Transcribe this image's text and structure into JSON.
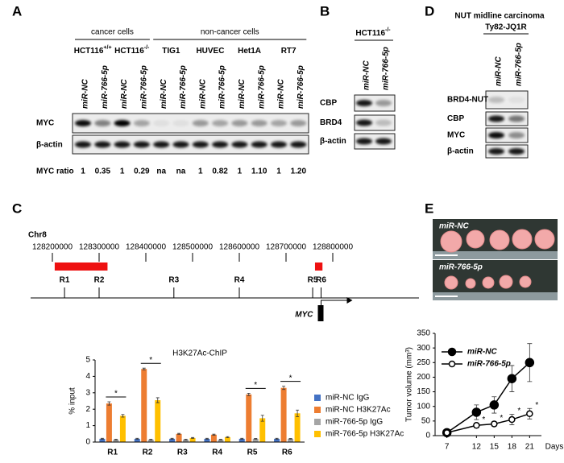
{
  "panels": {
    "A": {
      "letter": "A",
      "groups": [
        "cancer cells",
        "non-cancer cells"
      ],
      "cell_lines": [
        {
          "name": "HCT116",
          "sup": "+/+"
        },
        {
          "name": "HCT116",
          "sup": "-/-"
        },
        {
          "name": "TIG1"
        },
        {
          "name": "HUVEC"
        },
        {
          "name": "Het1A"
        },
        {
          "name": "RT7"
        }
      ],
      "lanes": [
        "miR-NC",
        "miR-766-5p",
        "miR-NC",
        "miR-766-5p",
        "miR-NC",
        "miR-766-5p",
        "miR-NC",
        "miR-766-5p",
        "miR-NC",
        "miR-766-5p",
        "miR-NC",
        "miR-766-5p"
      ],
      "rows": [
        "MYC",
        "β-actin"
      ],
      "ratio_label": "MYC ratio",
      "ratios": [
        "1",
        "0.35",
        "1",
        "0.29",
        "na",
        "na",
        "1",
        "0.82",
        "1",
        "1.10",
        "1",
        "1.20"
      ]
    },
    "B": {
      "letter": "B",
      "cell_line": {
        "name": "HCT116",
        "sup": "-/-"
      },
      "lanes": [
        "miR-NC",
        "miR-766-5p"
      ],
      "rows": [
        "CBP",
        "BRD4",
        "β-actin"
      ]
    },
    "C": {
      "letter": "C",
      "chromosome": "Chr8",
      "track": {
        "ticks": [
          128200000,
          128300000,
          128400000,
          128500000,
          128600000,
          128700000,
          128800000
        ],
        "regions": [
          {
            "label": "R1",
            "position": 128226000
          },
          {
            "label": "R2",
            "position": 128300000
          },
          {
            "label": "R3",
            "position": 128460000
          },
          {
            "label": "R4",
            "position": 128600000
          },
          {
            "label": "R5",
            "position": 128757000
          },
          {
            "label": "R6",
            "position": 128775000
          }
        ],
        "peaks": [
          [
            128205000,
            128318000
          ],
          [
            128762000,
            128778000
          ]
        ],
        "gene": {
          "label": "MYC",
          "position": 128775000
        }
      }
    },
    "D": {
      "letter": "D",
      "title": "NUT midline carcinoma",
      "cell_line": "Ty82-JQ1R",
      "lanes": [
        "miR-NC",
        "miR-766-5p"
      ],
      "rows": [
        "BRD4-NUT",
        "CBP",
        "MYC",
        "β-actin"
      ]
    },
    "E": {
      "letter": "E",
      "photos": [
        "miR-NC",
        "miR-766-5p"
      ]
    }
  },
  "chart_data": [
    {
      "type": "bar",
      "title": "H3K27Ac-ChIP",
      "y_label": "% input",
      "categories": [
        "R1",
        "R2",
        "R3",
        "R4",
        "R5",
        "R6"
      ],
      "series": [
        {
          "name": "miR-NC IgG",
          "color": "#4472c4",
          "values": [
            0.2,
            0.2,
            0.2,
            0.2,
            0.2,
            0.2
          ],
          "errors": [
            0.03,
            0.03,
            0.03,
            0.03,
            0.03,
            0.03
          ]
        },
        {
          "name": "miR-NC H3K27Ac",
          "color": "#ed7d31",
          "values": [
            2.35,
            4.45,
            0.5,
            0.45,
            2.9,
            3.3
          ],
          "errors": [
            0.1,
            0.05,
            0.03,
            0.03,
            0.07,
            0.1
          ]
        },
        {
          "name": "miR-766-5p IgG",
          "color": "#a5a5a5",
          "values": [
            0.15,
            0.15,
            0.15,
            0.15,
            0.2,
            0.2
          ],
          "errors": [
            0.02,
            0.02,
            0.02,
            0.02,
            0.02,
            0.02
          ]
        },
        {
          "name": "miR-766-5p H3K27Ac",
          "color": "#ffc000",
          "values": [
            1.6,
            2.55,
            0.25,
            0.3,
            1.45,
            1.75
          ],
          "errors": [
            0.08,
            0.15,
            0.03,
            0.03,
            0.18,
            0.2
          ]
        }
      ],
      "significance": [
        {
          "category": "R1",
          "label": "*"
        },
        {
          "category": "R2",
          "label": "*"
        },
        {
          "category": "R5",
          "label": "*"
        },
        {
          "category": "R6",
          "label": "*"
        }
      ],
      "ylim": [
        0,
        5
      ],
      "yticks": [
        0,
        1,
        2,
        3,
        4,
        5
      ]
    },
    {
      "type": "line",
      "x_label": "Days",
      "y_label": "Tumor volume (mm³)",
      "x": [
        7,
        12,
        15,
        18,
        21
      ],
      "series": [
        {
          "name": "miR-NC",
          "color": "#000000",
          "marker_fill": "#000000",
          "values": [
            10,
            80,
            105,
            195,
            250
          ],
          "errors": [
            5,
            25,
            28,
            45,
            65
          ]
        },
        {
          "name": "miR-766-5p",
          "color": "#000000",
          "marker_fill": "#ffffff",
          "values": [
            10,
            35,
            40,
            55,
            75
          ],
          "errors": [
            3,
            8,
            8,
            18,
            18
          ]
        }
      ],
      "significance": [
        {
          "x": 12,
          "label": "*"
        },
        {
          "x": 15,
          "label": "*"
        },
        {
          "x": 18,
          "label": "*"
        },
        {
          "x": 21,
          "label": "*"
        }
      ],
      "xlim": [
        5,
        23
      ],
      "xticks": [
        7,
        12,
        15,
        18,
        21
      ],
      "ylim": [
        0,
        350
      ],
      "yticks": [
        0,
        50,
        100,
        150,
        200,
        250,
        300,
        350
      ]
    }
  ]
}
